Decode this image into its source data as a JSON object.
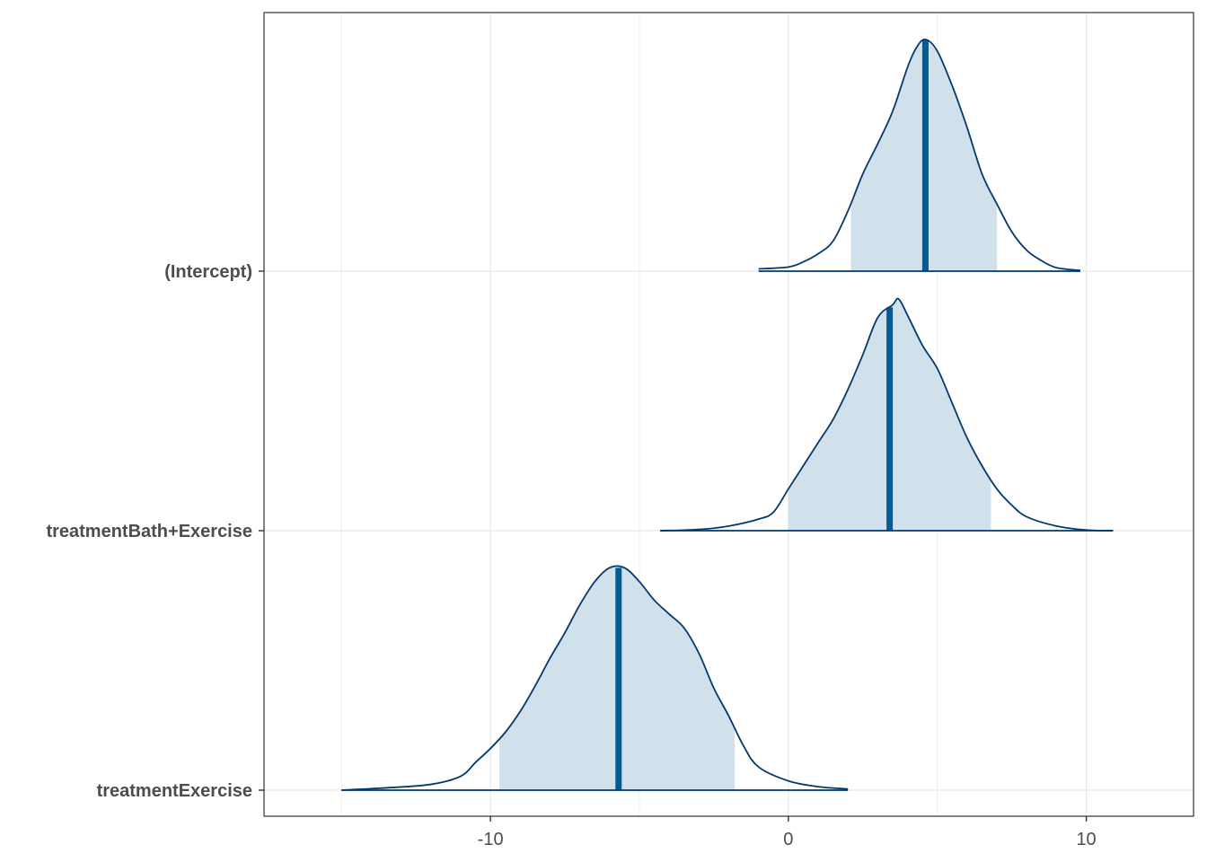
{
  "chart_data": {
    "type": "area",
    "title": "",
    "xlabel": "",
    "ylabel": "",
    "xlim": [
      -17.6,
      13.6
    ],
    "xticks": [
      -10,
      0,
      10
    ],
    "xtick_labels": [
      "-10",
      "0",
      "10"
    ],
    "grid": true,
    "colors": {
      "outline": "#03396c",
      "median": "#005b96",
      "interval_fill": "#d1e1ec",
      "grid": "#ebebeb",
      "panel_border": "#333333",
      "axis_text": "#4d4d4d"
    },
    "series": [
      {
        "name": "(Intercept)",
        "median": 4.6,
        "interval": [
          2.1,
          7.0
        ],
        "range": [
          -1.0,
          9.8
        ],
        "density": [
          [
            -1.0,
            0.01
          ],
          [
            0.0,
            0.018
          ],
          [
            0.5,
            0.04
          ],
          [
            1.0,
            0.075
          ],
          [
            1.5,
            0.13
          ],
          [
            2.0,
            0.26
          ],
          [
            2.5,
            0.42
          ],
          [
            3.0,
            0.55
          ],
          [
            3.5,
            0.69
          ],
          [
            4.0,
            0.88
          ],
          [
            4.3,
            0.965
          ],
          [
            4.6,
            1.0
          ],
          [
            5.0,
            0.95
          ],
          [
            5.5,
            0.8
          ],
          [
            6.0,
            0.62
          ],
          [
            6.5,
            0.42
          ],
          [
            7.0,
            0.29
          ],
          [
            7.5,
            0.17
          ],
          [
            8.0,
            0.09
          ],
          [
            8.5,
            0.045
          ],
          [
            9.0,
            0.015
          ],
          [
            9.8,
            0.003
          ]
        ]
      },
      {
        "name": "treatmentBath+Exercise",
        "median": 3.4,
        "interval": [
          0.0,
          6.8
        ],
        "range": [
          -4.3,
          10.9
        ],
        "density": [
          [
            -4.3,
            0.0
          ],
          [
            -3.0,
            0.005
          ],
          [
            -2.0,
            0.02
          ],
          [
            -1.0,
            0.05
          ],
          [
            -0.5,
            0.08
          ],
          [
            0.0,
            0.18
          ],
          [
            0.5,
            0.28
          ],
          [
            1.0,
            0.38
          ],
          [
            1.5,
            0.48
          ],
          [
            2.0,
            0.61
          ],
          [
            2.5,
            0.76
          ],
          [
            3.0,
            0.92
          ],
          [
            3.5,
            0.975
          ],
          [
            3.7,
            1.0
          ],
          [
            4.0,
            0.93
          ],
          [
            4.5,
            0.8
          ],
          [
            5.0,
            0.7
          ],
          [
            5.5,
            0.55
          ],
          [
            6.0,
            0.4
          ],
          [
            6.5,
            0.28
          ],
          [
            7.0,
            0.18
          ],
          [
            7.5,
            0.11
          ],
          [
            8.0,
            0.06
          ],
          [
            9.0,
            0.02
          ],
          [
            10.0,
            0.003
          ],
          [
            10.9,
            0.0
          ]
        ]
      },
      {
        "name": "treatmentExercise",
        "median": -5.7,
        "interval": [
          -9.7,
          -1.8
        ],
        "range": [
          -15.0,
          2.0
        ],
        "density": [
          [
            -15.0,
            0.0
          ],
          [
            -13.5,
            0.01
          ],
          [
            -12.0,
            0.025
          ],
          [
            -11.0,
            0.06
          ],
          [
            -10.5,
            0.12
          ],
          [
            -10.0,
            0.18
          ],
          [
            -9.5,
            0.25
          ],
          [
            -9.0,
            0.34
          ],
          [
            -8.5,
            0.45
          ],
          [
            -8.0,
            0.57
          ],
          [
            -7.5,
            0.68
          ],
          [
            -7.0,
            0.8
          ],
          [
            -6.5,
            0.9
          ],
          [
            -6.0,
            0.96
          ],
          [
            -5.5,
            0.96
          ],
          [
            -5.0,
            0.9
          ],
          [
            -4.5,
            0.82
          ],
          [
            -4.0,
            0.76
          ],
          [
            -3.5,
            0.7
          ],
          [
            -3.0,
            0.59
          ],
          [
            -2.5,
            0.44
          ],
          [
            -2.0,
            0.32
          ],
          [
            -1.5,
            0.19
          ],
          [
            -1.0,
            0.1
          ],
          [
            0.0,
            0.04
          ],
          [
            1.0,
            0.015
          ],
          [
            2.0,
            0.005
          ]
        ]
      }
    ]
  }
}
